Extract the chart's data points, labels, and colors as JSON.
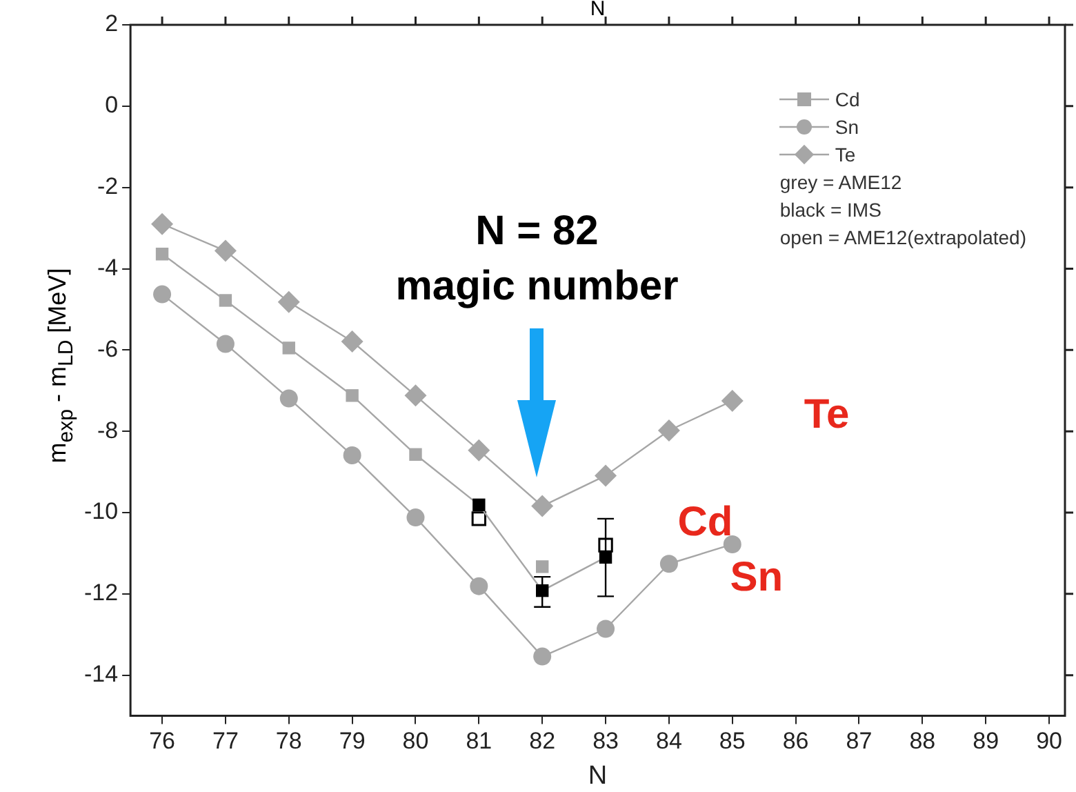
{
  "chart_data": {
    "type": "line",
    "xlabel": "N",
    "x2label": "N",
    "ylabel": "m$_{exp}$ - m$_{LD}$ [MeV]",
    "xlim": [
      75.5,
      90.25
    ],
    "xticks": [
      76,
      77,
      78,
      79,
      80,
      81,
      82,
      83,
      84,
      85,
      86,
      87,
      88,
      89,
      90
    ],
    "ylim": [
      -15,
      2
    ],
    "yticks": [
      -14,
      -12,
      -10,
      -8,
      -6,
      -4,
      -2,
      0,
      2
    ],
    "grid": false,
    "legend": "top right",
    "line_style": "solid",
    "series": [
      {
        "name": "Cd",
        "marker": "square",
        "color": "#a6a6a6",
        "x": [
          76,
          77,
          78,
          79,
          80,
          81,
          82,
          83
        ],
        "values": [
          -3.64,
          -4.78,
          -5.95,
          -7.12,
          -8.57,
          -9.81,
          -11.92,
          -11.1
        ],
        "colors": [
          "#a6a6a6",
          "#a6a6a6",
          "#a6a6a6",
          "#a6a6a6",
          "#a6a6a6",
          "#000000",
          "#000000",
          "#000000"
        ],
        "errors": [
          null,
          null,
          null,
          null,
          null,
          null,
          [
            -12.32,
            -11.58
          ],
          [
            -12.06,
            -10.15
          ]
        ]
      },
      {
        "name": "Sn",
        "marker": "circle",
        "color": "#a6a6a6",
        "x": [
          76,
          77,
          78,
          79,
          80,
          81,
          82,
          83,
          84,
          85
        ],
        "values": [
          -4.63,
          -5.85,
          -7.19,
          -8.59,
          -10.12,
          -11.81,
          -13.54,
          -12.86,
          -11.26,
          -10.78
        ]
      },
      {
        "name": "Te",
        "marker": "diamond",
        "color": "#a6a6a6",
        "x": [
          76,
          77,
          78,
          79,
          80,
          81,
          82,
          83,
          84,
          85
        ],
        "values": [
          -2.9,
          -3.56,
          -4.82,
          -5.79,
          -7.12,
          -8.47,
          -9.84,
          -9.09,
          -7.98,
          -7.25
        ]
      },
      {
        "type": "scatter",
        "marker": "square",
        "color": "#a6a6a6",
        "x": [
          82
        ],
        "values": [
          -11.33
        ]
      },
      {
        "type": "scatter",
        "marker": "square",
        "color": "#ffffff",
        "x": [
          81,
          83
        ],
        "values": [
          -10.15,
          -10.8
        ]
      }
    ],
    "annotations": [
      "N = 82",
      "magic number",
      "Te",
      "Cd",
      "Sn",
      "grey = AME12",
      "black = IMS",
      "open = AME12(extrapolated)"
    ]
  }
}
